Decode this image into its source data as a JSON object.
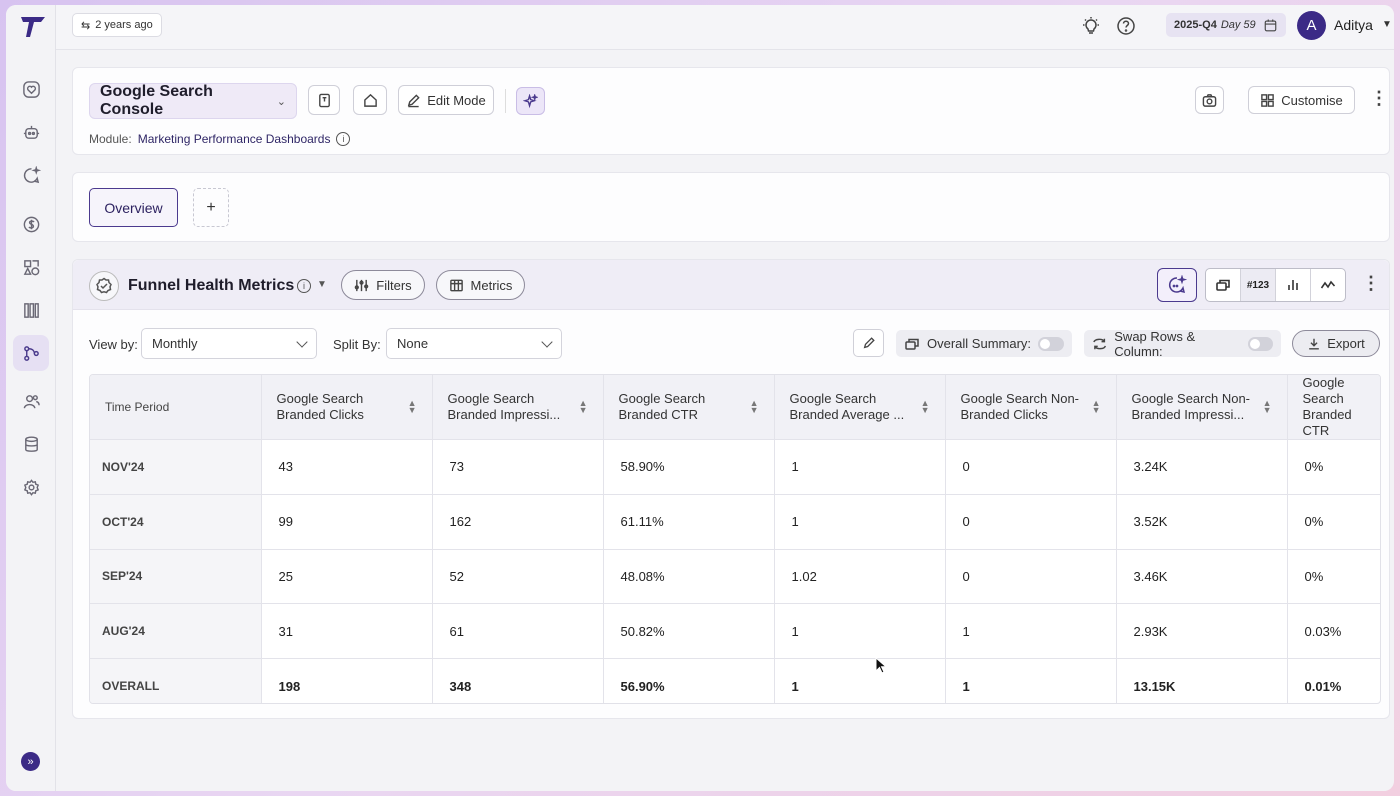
{
  "topbar": {
    "time_ago": "2 years ago",
    "quarter": "2025-Q4",
    "day": "Day 59",
    "avatar_letter": "A",
    "user_name": "Aditya"
  },
  "dashboard": {
    "name": "Google Search Console",
    "edit_mode_label": "Edit Mode",
    "customise_label": "Customise",
    "module_label": "Module:",
    "module_name": "Marketing Performance Dashboards"
  },
  "tabs": {
    "overview_label": "Overview",
    "add_label": "+"
  },
  "widget": {
    "title": "Funnel Health Metrics",
    "filters_label": "Filters",
    "metrics_label": "Metrics",
    "number_view_label": "#123",
    "view_by_label": "View by:",
    "view_by_value": "Monthly",
    "split_by_label": "Split By:",
    "split_by_value": "None",
    "overall_summary_label": "Overall Summary:",
    "swap_label": "Swap Rows & Column:",
    "export_label": "Export"
  },
  "table": {
    "columns": [
      "Time Period",
      "Google Search Branded Clicks",
      "Google Search Branded Impressi...",
      "Google Search Branded CTR",
      "Google Search Branded Average ...",
      "Google Search Non-Branded Clicks",
      "Google Search Non-Branded Impressi...",
      "Google Search Branded CTR"
    ],
    "rows": [
      [
        "NOV'24",
        "43",
        "73",
        "58.90%",
        "1",
        "0",
        "3.24K",
        "0%"
      ],
      [
        "OCT'24",
        "99",
        "162",
        "61.11%",
        "1",
        "0",
        "3.52K",
        "0%"
      ],
      [
        "SEP'24",
        "25",
        "52",
        "48.08%",
        "1.02",
        "0",
        "3.46K",
        "0%"
      ],
      [
        "AUG'24",
        "31",
        "61",
        "50.82%",
        "1",
        "1",
        "2.93K",
        "0.03%"
      ],
      [
        "OVERALL",
        "198",
        "348",
        "56.90%",
        "1",
        "1",
        "13.15K",
        "0.01%"
      ]
    ]
  },
  "colors": {
    "accent": "#3b2a86",
    "accent_light": "#efeaf7",
    "background": "#f3f3f6"
  }
}
